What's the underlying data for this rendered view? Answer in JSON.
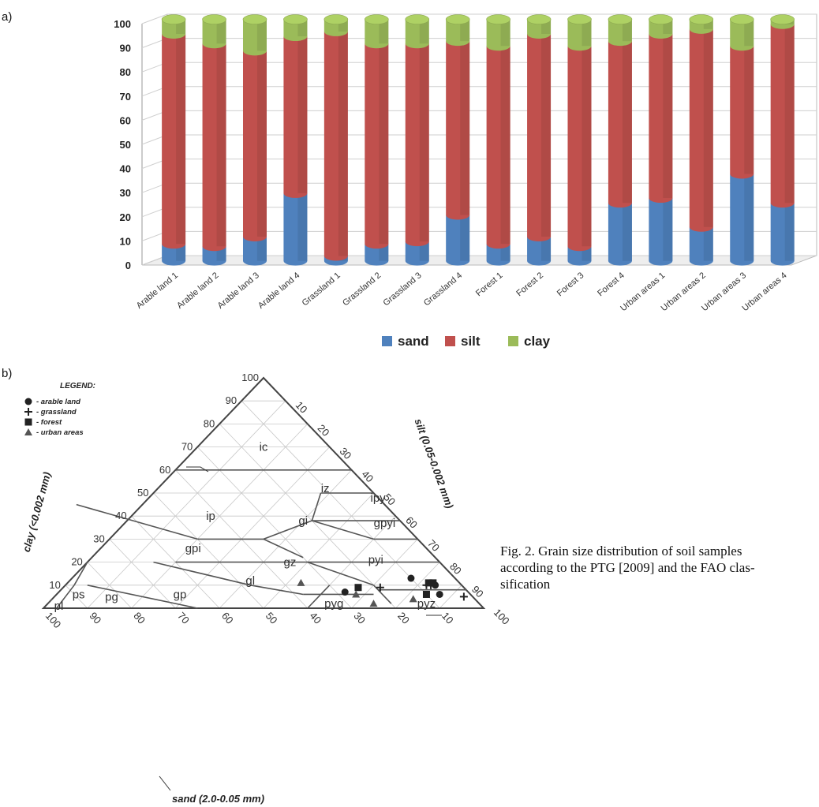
{
  "panel_labels": {
    "a": "a)",
    "b": "b)"
  },
  "chart_data": [
    {
      "type": "bar",
      "stacked": true,
      "categories": [
        "Arable land 1",
        "Arable land 2",
        "Arable land 3",
        "Arable land 4",
        "Grassland 1",
        "Grassland 2",
        "Grassland 3",
        "Grassland 4",
        "Forest 1",
        "Forest 2",
        "Forest 3",
        "Forest 4",
        "Urban areas 1",
        "Urban areas 2",
        "Urban areas 3",
        "Urban areas 4"
      ],
      "series": [
        {
          "name": "sand",
          "color": "#4F81BD",
          "values": [
            7,
            6,
            10,
            28,
            2,
            7,
            8,
            19,
            7,
            10,
            6,
            24,
            26,
            14,
            36,
            24
          ]
        },
        {
          "name": "silt",
          "color": "#C0504D",
          "values": [
            87,
            84,
            77,
            65,
            93,
            83,
            82,
            72,
            82,
            84,
            83,
            67,
            68,
            82,
            53,
            74
          ]
        },
        {
          "name": "clay",
          "color": "#9BBB59",
          "values": [
            6,
            10,
            13,
            7,
            5,
            10,
            10,
            9,
            11,
            6,
            11,
            9,
            6,
            4,
            11,
            2
          ]
        }
      ],
      "y_ticks": [
        "0",
        "10",
        "20",
        "30",
        "40",
        "50",
        "60",
        "70",
        "80",
        "90",
        "100"
      ],
      "ylim": [
        0,
        100
      ],
      "grid": true,
      "legend_placement": "bottom"
    },
    {
      "type": "scatter",
      "subtype": "ternary",
      "axes": {
        "clay": "clay (<0.002 mm)",
        "silt": "silt (0.05-0.002 mm)",
        "sand": "sand (2.0-0.05 mm)"
      },
      "clay_ticks": [
        "10",
        "20",
        "30",
        "40",
        "50",
        "60",
        "70",
        "80",
        "90",
        "100"
      ],
      "silt_ticks": [
        "10",
        "20",
        "30",
        "40",
        "50",
        "60",
        "70",
        "80",
        "90",
        "100"
      ],
      "sand_ticks": [
        "100",
        "90",
        "80",
        "70",
        "60",
        "50",
        "40",
        "30",
        "20",
        "10"
      ],
      "class_labels": [
        {
          "label": "ic",
          "sand": 15,
          "clay": 70
        },
        {
          "label": "iz",
          "sand": 10,
          "clay": 52
        },
        {
          "label": "ipy",
          "sand": 0,
          "clay": 48
        },
        {
          "label": "ip",
          "sand": 42,
          "clay": 40
        },
        {
          "label": "gi",
          "sand": 22,
          "clay": 38
        },
        {
          "label": "gpyi",
          "sand": 4,
          "clay": 37
        },
        {
          "label": "gpi",
          "sand": 53,
          "clay": 26
        },
        {
          "label": "gz",
          "sand": 34,
          "clay": 20
        },
        {
          "label": "pyi",
          "sand": 14,
          "clay": 21
        },
        {
          "label": "gl",
          "sand": 47,
          "clay": 12
        },
        {
          "label": "gp",
          "sand": 66,
          "clay": 6
        },
        {
          "label": "pg",
          "sand": 82,
          "clay": 5
        },
        {
          "label": "ps",
          "sand": 89,
          "clay": 6
        },
        {
          "label": "pl",
          "sand": 96,
          "clay": 1
        },
        {
          "label": "pyg",
          "sand": 33,
          "clay": 2
        },
        {
          "label": "pyz",
          "sand": 12,
          "clay": 2
        }
      ],
      "legend_title": "LEGEND:",
      "legend": [
        {
          "symbol": "circle",
          "label": "- arable land"
        },
        {
          "symbol": "plus",
          "label": "- grassland"
        },
        {
          "symbol": "square",
          "label": "- forest"
        },
        {
          "symbol": "triangle",
          "label": "- urban areas"
        }
      ],
      "points": [
        {
          "group": "arable land",
          "symbol": "circle",
          "sand": 7,
          "clay": 6
        },
        {
          "group": "arable land",
          "symbol": "circle",
          "sand": 6,
          "clay": 10
        },
        {
          "group": "arable land",
          "symbol": "circle",
          "sand": 10,
          "clay": 13
        },
        {
          "group": "arable land",
          "symbol": "circle",
          "sand": 28,
          "clay": 7
        },
        {
          "group": "grassland",
          "symbol": "plus",
          "sand": 2,
          "clay": 5
        },
        {
          "group": "grassland",
          "symbol": "plus",
          "sand": 7,
          "clay": 10
        },
        {
          "group": "grassland",
          "symbol": "plus",
          "sand": 8,
          "clay": 10
        },
        {
          "group": "grassland",
          "symbol": "plus",
          "sand": 19,
          "clay": 9
        },
        {
          "group": "forest",
          "symbol": "square",
          "sand": 7,
          "clay": 11
        },
        {
          "group": "forest",
          "symbol": "square",
          "sand": 10,
          "clay": 6
        },
        {
          "group": "forest",
          "symbol": "square",
          "sand": 6,
          "clay": 11
        },
        {
          "group": "forest",
          "symbol": "square",
          "sand": 24,
          "clay": 9
        },
        {
          "group": "urban areas",
          "symbol": "triangle",
          "sand": 26,
          "clay": 6
        },
        {
          "group": "urban areas",
          "symbol": "triangle",
          "sand": 14,
          "clay": 4
        },
        {
          "group": "urban areas",
          "symbol": "triangle",
          "sand": 36,
          "clay": 11
        },
        {
          "group": "urban areas",
          "symbol": "triangle",
          "sand": 24,
          "clay": 2
        }
      ]
    }
  ],
  "caption_lines": [
    "Fig. 2. Grain size distribution of soil samples",
    "according to the PTG [2009] and the FAO clas-",
    "sification"
  ]
}
